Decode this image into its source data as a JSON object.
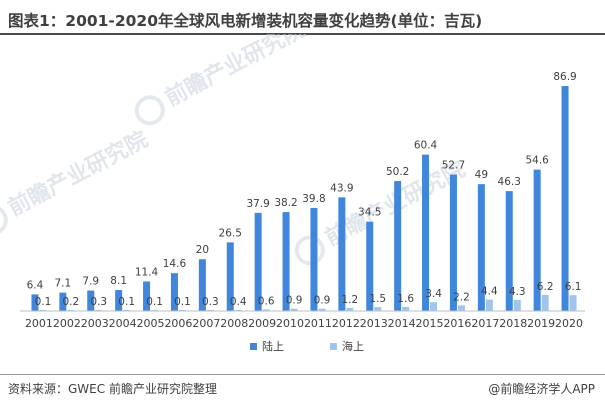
{
  "title": "图表1：2001-2020年全球风电新增装机容量变化趋势(单位：吉瓦)",
  "source": "资料来源：GWEC 前瞻产业研究院整理",
  "brand": "@前瞻经济学人APP",
  "watermark": "前瞻产业研究院",
  "chart_data": {
    "type": "bar",
    "categories": [
      "2001",
      "2002",
      "2003",
      "2004",
      "2005",
      "2006",
      "2007",
      "2008",
      "2009",
      "2010",
      "2011",
      "2012",
      "2013",
      "2014",
      "2015",
      "2016",
      "2017",
      "2018",
      "2019",
      "2020"
    ],
    "series": [
      {
        "name": "陆上",
        "color": "#3f86dc",
        "values": [
          6.4,
          7.1,
          7.9,
          8.1,
          11.4,
          14.6,
          20,
          26.5,
          37.9,
          38.2,
          39.8,
          43.9,
          34.5,
          50.2,
          60.4,
          52.7,
          49,
          46.3,
          54.6,
          86.9
        ]
      },
      {
        "name": "海上",
        "color": "#9fc4ee",
        "values": [
          0.1,
          0.2,
          0.3,
          0.1,
          0.1,
          0.1,
          0.3,
          0.4,
          0.6,
          0.9,
          0.9,
          1.2,
          1.5,
          1.6,
          3.4,
          2.2,
          4.4,
          4.3,
          6.2,
          6.1
        ]
      }
    ],
    "ylim": [
      0,
      90
    ],
    "grid": false,
    "legend": "bottom-center"
  }
}
